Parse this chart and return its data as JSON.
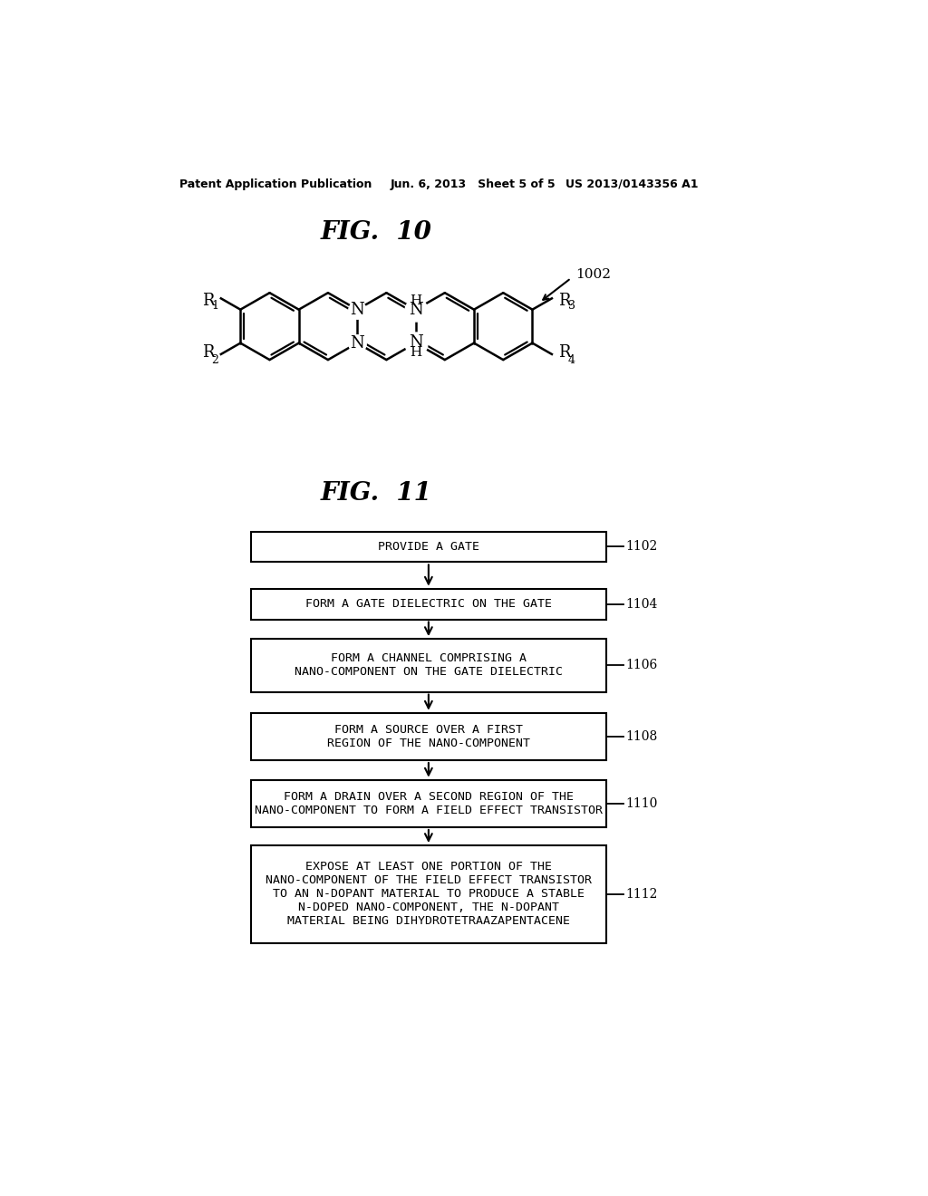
{
  "background_color": "#ffffff",
  "header_left": "Patent Application Publication",
  "header_mid": "Jun. 6, 2013   Sheet 5 of 5",
  "header_right": "US 2013/0143356 A1",
  "fig10_title": "FIG.  10",
  "fig10_label": "1002",
  "fig11_title": "FIG.  11",
  "flowchart_boxes": [
    {
      "label": "PROVIDE A GATE",
      "ref": "1102"
    },
    {
      "label": "FORM A GATE DIELECTRIC ON THE GATE",
      "ref": "1104"
    },
    {
      "label": "FORM A CHANNEL COMPRISING A\nNANO-COMPONENT ON THE GATE DIELECTRIC",
      "ref": "1106"
    },
    {
      "label": "FORM A SOURCE OVER A FIRST\nREGION OF THE NANO-COMPONENT",
      "ref": "1108"
    },
    {
      "label": "FORM A DRAIN OVER A SECOND REGION OF THE\nNANO-COMPONENT TO FORM A FIELD EFFECT TRANSISTOR",
      "ref": "1110"
    },
    {
      "label": "EXPOSE AT LEAST ONE PORTION OF THE\nNANO-COMPONENT OF THE FIELD EFFECT TRANSISTOR\nTO AN N-DOPANT MATERIAL TO PRODUCE A STABLE\nN-DOPED NANO-COMPONENT, THE N-DOPANT\nMATERIAL BEING DIHYDROTETRAAZAPENTACENE",
      "ref": "1112"
    }
  ]
}
